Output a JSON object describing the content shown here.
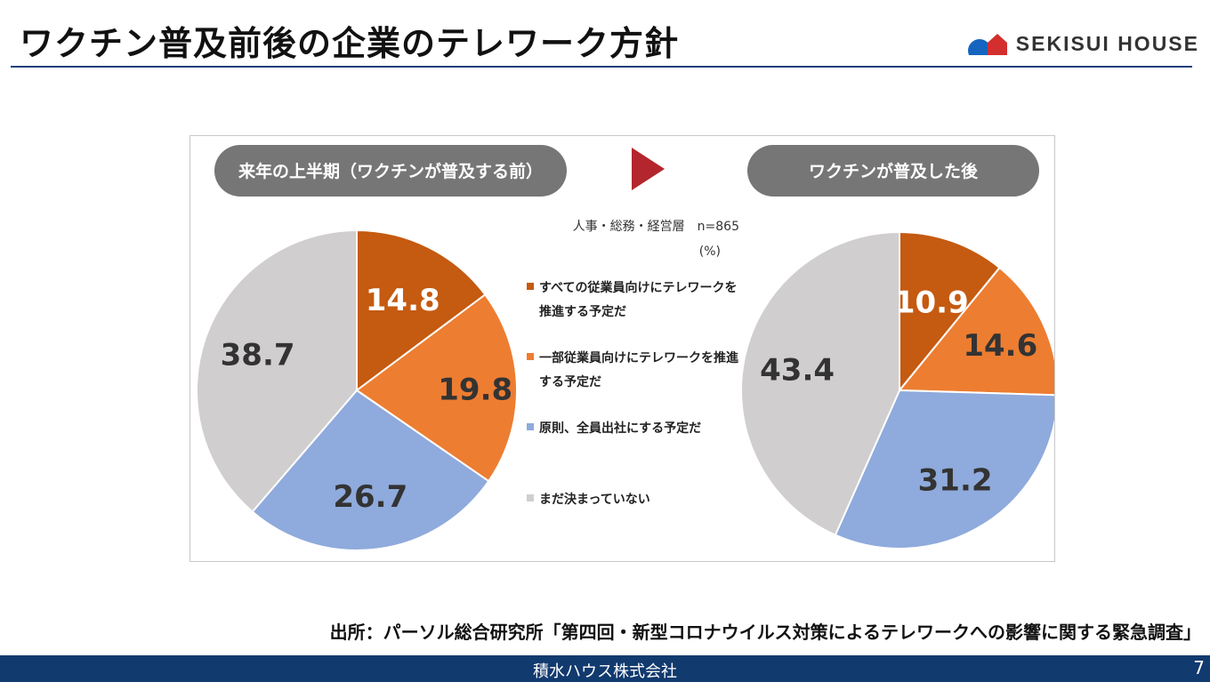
{
  "header": {
    "title": "ワクチン普及前後の企業のテレワーク方針",
    "logo_text": "SEKISUI HOUSE"
  },
  "colors": {
    "title_rule": "#1f3f7a",
    "pill_bg": "#767676",
    "arrow": "#b3262d",
    "footer_bg": "#113a6e",
    "logo_blue": "#1565c0",
    "logo_red": "#d32f2f"
  },
  "chart_data": [
    {
      "type": "pie",
      "title": "来年の上半期（ワクチンが普及する前）",
      "unit": "%",
      "labels": [
        "すべての従業員向けにテレワークを推進する予定だ",
        "一部従業員向けにテレワークを推進する予定だ",
        "原則、全員出社にする予定だ",
        "まだ決まっていない"
      ],
      "values": [
        14.8,
        19.8,
        26.7,
        38.7
      ],
      "value_labels": [
        "14.8",
        "19.8",
        "26.7",
        "38.7"
      ],
      "colors": [
        "#c55a11",
        "#ed7d31",
        "#8faadc",
        "#d0cece"
      ]
    },
    {
      "type": "pie",
      "title": "ワクチンが普及した後",
      "unit": "%",
      "labels": [
        "すべての従業員向けにテレワークを推進する予定だ",
        "一部従業員向けにテレワークを推進する予定だ",
        "原則、全員出社にする予定だ",
        "まだ決まっていない"
      ],
      "values": [
        10.9,
        14.6,
        31.2,
        43.4
      ],
      "value_labels": [
        "10.9",
        "14.6",
        "31.2",
        "43.4"
      ],
      "colors": [
        "#c55a11",
        "#ed7d31",
        "#8faadc",
        "#d0cece"
      ]
    }
  ],
  "legend": {
    "sample": "人事・総務・経営層　n=865",
    "unit": "(%)",
    "items": [
      {
        "lines": [
          "すべての従業員向けにテレワークを",
          "推進する予定だ"
        ],
        "color": "#c55a11"
      },
      {
        "lines": [
          "一部従業員向けにテレワークを推進",
          "する予定だ"
        ],
        "color": "#ed7d31"
      },
      {
        "lines": [
          "原則、全員出社にする予定だ"
        ],
        "color": "#8faadc"
      },
      {
        "lines": [
          "まだ決まっていない"
        ],
        "color": "#d0cece"
      }
    ]
  },
  "source": "出所：パーソル総合研究所「第四回・新型コロナウイルス対策によるテレワークへの影響に関する緊急調査」",
  "footer": {
    "company": "積水ハウス株式会社",
    "page": "7"
  }
}
